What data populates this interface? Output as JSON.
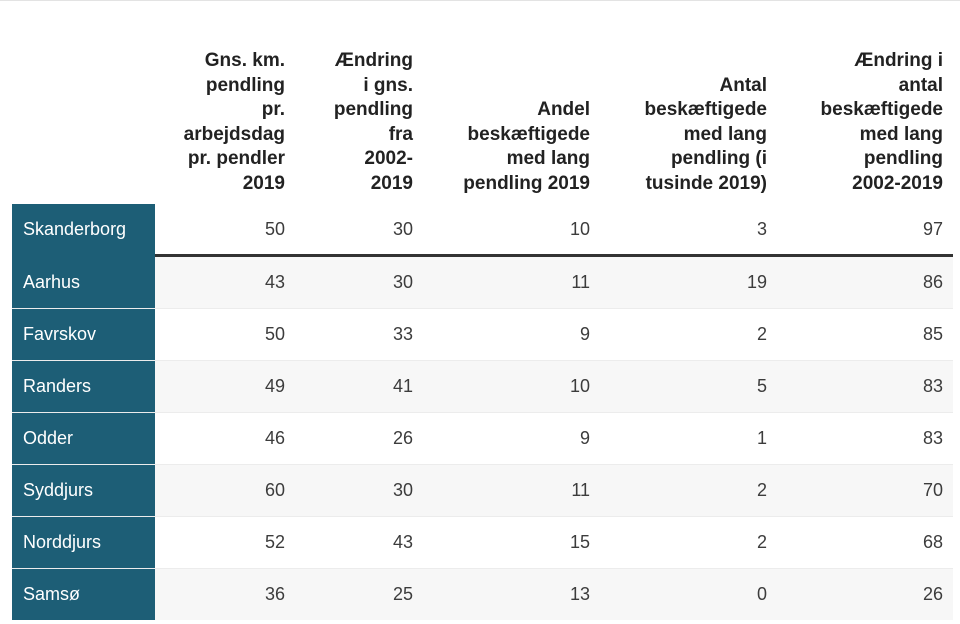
{
  "headers": [
    "",
    [
      "Gns. km.",
      "pendling",
      "pr.",
      "arbejdsdag",
      "pr. pendler",
      "2019"
    ],
    [
      "Ændring",
      "i gns.",
      "pendling",
      "fra",
      "2002-",
      "2019"
    ],
    [
      "Andel",
      "beskæftigede",
      "med lang",
      "pendling 2019"
    ],
    [
      "Antal",
      "beskæftigede",
      "med lang",
      "pendling (i",
      "tusinde 2019)"
    ],
    [
      "Ændring i",
      "antal",
      "beskæftigede",
      "med lang",
      "pendling",
      "2002-2019"
    ]
  ],
  "featured": {
    "name": "Skanderborg",
    "values": [
      "50",
      "30",
      "10",
      "3",
      "97"
    ]
  },
  "rows": [
    {
      "name": "Aarhus",
      "values": [
        "43",
        "30",
        "11",
        "19",
        "86"
      ]
    },
    {
      "name": "Favrskov",
      "values": [
        "50",
        "33",
        "9",
        "2",
        "85"
      ]
    },
    {
      "name": "Randers",
      "values": [
        "49",
        "41",
        "10",
        "5",
        "83"
      ]
    },
    {
      "name": "Odder",
      "values": [
        "46",
        "26",
        "9",
        "1",
        "83"
      ]
    },
    {
      "name": "Syddjurs",
      "values": [
        "60",
        "30",
        "11",
        "2",
        "70"
      ]
    },
    {
      "name": "Norddjurs",
      "values": [
        "52",
        "43",
        "15",
        "2",
        "68"
      ]
    },
    {
      "name": "Samsø",
      "values": [
        "36",
        "25",
        "13",
        "0",
        "26"
      ]
    }
  ],
  "colors": {
    "name_bg": "#1d5e76",
    "name_text": "#ffffff",
    "stripe": "#f7f7f7",
    "divider": "#333333"
  }
}
